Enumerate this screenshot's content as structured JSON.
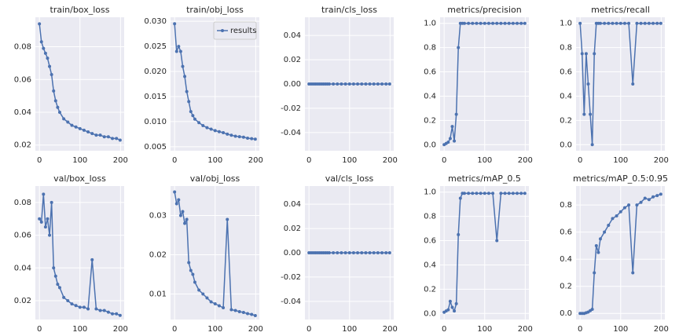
{
  "chart_data": [
    {
      "type": "line",
      "title": "train/box_loss",
      "x": [
        0,
        5,
        10,
        15,
        20,
        25,
        30,
        35,
        40,
        45,
        50,
        60,
        70,
        80,
        90,
        100,
        110,
        120,
        130,
        140,
        150,
        160,
        170,
        180,
        190,
        199
      ],
      "series": [
        {
          "color": "#4c72b0",
          "values": [
            0.094,
            0.083,
            0.079,
            0.076,
            0.073,
            0.068,
            0.063,
            0.053,
            0.047,
            0.043,
            0.04,
            0.036,
            0.034,
            0.032,
            0.031,
            0.03,
            0.029,
            0.028,
            0.027,
            0.026,
            0.026,
            0.025,
            0.025,
            0.024,
            0.024,
            0.023
          ]
        }
      ],
      "xlim": [
        -10,
        209
      ],
      "ylim": [
        0.0165,
        0.098
      ],
      "xticks": [
        0,
        100,
        200
      ],
      "yticks": [
        0.02,
        0.04,
        0.06,
        0.08
      ],
      "grid": true
    },
    {
      "type": "line",
      "title": "train/obj_loss",
      "x": [
        0,
        5,
        10,
        15,
        20,
        25,
        30,
        35,
        40,
        45,
        50,
        60,
        70,
        80,
        90,
        100,
        110,
        120,
        130,
        140,
        150,
        160,
        170,
        180,
        190,
        199
      ],
      "series": [
        {
          "name": "results",
          "color": "#4c72b0",
          "values": [
            0.0295,
            0.024,
            0.025,
            0.024,
            0.021,
            0.019,
            0.016,
            0.014,
            0.012,
            0.0112,
            0.0105,
            0.0098,
            0.0092,
            0.0088,
            0.0085,
            0.0082,
            0.008,
            0.0078,
            0.0075,
            0.0073,
            0.0071,
            0.007,
            0.0069,
            0.0067,
            0.0066,
            0.0065
          ]
        }
      ],
      "xlim": [
        -10,
        209
      ],
      "ylim": [
        0.0042,
        0.0308
      ],
      "xticks": [
        0,
        100,
        200
      ],
      "yticks": [
        0.005,
        {
          "value": 0.01,
          "label": "0.010"
        },
        0.015,
        {
          "value": 0.02,
          "label": "0.020"
        },
        0.025,
        {
          "value": 0.03,
          "label": "0.030"
        }
      ],
      "grid": true,
      "legend": "upper right"
    },
    {
      "type": "line",
      "title": "train/cls_loss",
      "x": [
        0,
        5,
        10,
        15,
        20,
        25,
        30,
        35,
        40,
        45,
        50,
        60,
        70,
        80,
        90,
        100,
        110,
        120,
        130,
        140,
        150,
        160,
        170,
        180,
        190,
        199
      ],
      "series": [
        {
          "color": "#4c72b0",
          "values": [
            0,
            0,
            0,
            0,
            0,
            0,
            0,
            0,
            0,
            0,
            0,
            0,
            0,
            0,
            0,
            0,
            0,
            0,
            0,
            0,
            0,
            0,
            0,
            0,
            0,
            0
          ]
        }
      ],
      "xlim": [
        -10,
        209
      ],
      "ylim": [
        -0.055,
        0.055
      ],
      "xticks": [
        0,
        100,
        200
      ],
      "yticks": [
        -0.04,
        -0.02,
        {
          "value": 0,
          "label": "0.00"
        },
        0.02,
        0.04
      ],
      "grid": true
    },
    {
      "type": "line",
      "title": "metrics/precision",
      "x": [
        0,
        5,
        10,
        15,
        20,
        25,
        30,
        35,
        40,
        45,
        50,
        60,
        70,
        80,
        90,
        100,
        110,
        120,
        130,
        140,
        150,
        160,
        170,
        180,
        190,
        199
      ],
      "series": [
        {
          "color": "#4c72b0",
          "values": [
            0.0,
            0.01,
            0.02,
            0.05,
            0.15,
            0.03,
            0.25,
            0.8,
            1,
            1,
            1,
            1,
            1,
            1,
            1,
            1,
            1,
            1,
            1,
            1,
            1,
            1,
            1,
            1,
            1,
            1
          ]
        }
      ],
      "xlim": [
        -10,
        209
      ],
      "ylim": [
        -0.05,
        1.05
      ],
      "xticks": [
        0,
        100,
        200
      ],
      "yticks": [
        {
          "value": 0,
          "label": "0.0"
        },
        0.2,
        0.4,
        0.6,
        0.8,
        {
          "value": 1,
          "label": "1.0"
        }
      ],
      "grid": true
    },
    {
      "type": "line",
      "title": "metrics/recall",
      "x": [
        0,
        5,
        10,
        15,
        20,
        25,
        30,
        35,
        40,
        45,
        50,
        60,
        70,
        80,
        90,
        100,
        110,
        120,
        130,
        140,
        150,
        160,
        170,
        180,
        190,
        199
      ],
      "series": [
        {
          "color": "#4c72b0",
          "values": [
            1,
            0.75,
            0.25,
            0.75,
            0.5,
            0.25,
            0.0,
            0.75,
            1,
            1,
            1,
            1,
            1,
            1,
            1,
            1,
            1,
            1,
            0.5,
            1,
            1,
            1,
            1,
            1,
            1,
            1
          ]
        }
      ],
      "xlim": [
        -10,
        209
      ],
      "ylim": [
        -0.05,
        1.05
      ],
      "xticks": [
        0,
        100,
        200
      ],
      "yticks": [
        {
          "value": 0,
          "label": "0.0"
        },
        0.2,
        0.4,
        0.6,
        0.8,
        {
          "value": 1,
          "label": "1.0"
        }
      ],
      "grid": true
    },
    {
      "type": "line",
      "title": "val/box_loss",
      "x": [
        0,
        5,
        10,
        15,
        20,
        25,
        30,
        35,
        40,
        45,
        50,
        60,
        70,
        80,
        90,
        100,
        110,
        120,
        130,
        140,
        150,
        160,
        170,
        180,
        190,
        199
      ],
      "series": [
        {
          "color": "#4c72b0",
          "values": [
            0.07,
            0.068,
            0.085,
            0.065,
            0.07,
            0.06,
            0.08,
            0.04,
            0.035,
            0.03,
            0.028,
            0.022,
            0.02,
            0.018,
            0.017,
            0.016,
            0.016,
            0.015,
            0.045,
            0.015,
            0.014,
            0.014,
            0.013,
            0.012,
            0.012,
            0.011
          ]
        }
      ],
      "xlim": [
        -10,
        209
      ],
      "ylim": [
        0.0085,
        0.09
      ],
      "xticks": [
        0,
        100,
        200
      ],
      "yticks": [
        0.02,
        0.04,
        0.06,
        0.08
      ],
      "grid": true
    },
    {
      "type": "line",
      "title": "val/obj_loss",
      "x": [
        0,
        5,
        10,
        15,
        20,
        25,
        30,
        35,
        40,
        45,
        50,
        60,
        70,
        80,
        90,
        100,
        110,
        120,
        130,
        140,
        150,
        160,
        170,
        180,
        190,
        199
      ],
      "series": [
        {
          "color": "#4c72b0",
          "values": [
            0.036,
            0.033,
            0.034,
            0.03,
            0.031,
            0.028,
            0.029,
            0.018,
            0.016,
            0.015,
            0.013,
            0.011,
            0.01,
            0.009,
            0.008,
            0.0075,
            0.007,
            0.0065,
            0.029,
            0.006,
            0.0058,
            0.0055,
            0.0053,
            0.005,
            0.0048,
            0.0045
          ]
        }
      ],
      "xlim": [
        -10,
        209
      ],
      "ylim": [
        0.0035,
        0.0375
      ],
      "xticks": [
        0,
        100,
        200
      ],
      "yticks": [
        0.01,
        0.02,
        0.03
      ],
      "grid": true
    },
    {
      "type": "line",
      "title": "val/cls_loss",
      "x": [
        0,
        5,
        10,
        15,
        20,
        25,
        30,
        35,
        40,
        45,
        50,
        60,
        70,
        80,
        90,
        100,
        110,
        120,
        130,
        140,
        150,
        160,
        170,
        180,
        190,
        199
      ],
      "series": [
        {
          "color": "#4c72b0",
          "values": [
            0,
            0,
            0,
            0,
            0,
            0,
            0,
            0,
            0,
            0,
            0,
            0,
            0,
            0,
            0,
            0,
            0,
            0,
            0,
            0,
            0,
            0,
            0,
            0,
            0,
            0
          ]
        }
      ],
      "xlim": [
        -10,
        209
      ],
      "ylim": [
        -0.055,
        0.055
      ],
      "xticks": [
        0,
        100,
        200
      ],
      "yticks": [
        -0.04,
        -0.02,
        {
          "value": 0,
          "label": "0.00"
        },
        0.02,
        0.04
      ],
      "grid": true
    },
    {
      "type": "line",
      "title": "metrics/mAP_0.5",
      "x": [
        0,
        5,
        10,
        15,
        20,
        25,
        30,
        35,
        40,
        45,
        50,
        60,
        70,
        80,
        90,
        100,
        110,
        120,
        130,
        140,
        150,
        160,
        170,
        180,
        190,
        199
      ],
      "series": [
        {
          "color": "#4c72b0",
          "values": [
            0.01,
            0.02,
            0.03,
            0.1,
            0.05,
            0.02,
            0.08,
            0.65,
            0.95,
            0.99,
            0.99,
            0.99,
            0.99,
            0.99,
            0.99,
            0.99,
            0.99,
            0.99,
            0.6,
            0.99,
            0.99,
            0.99,
            0.99,
            0.99,
            0.99,
            0.99
          ]
        }
      ],
      "xlim": [
        -10,
        209
      ],
      "ylim": [
        -0.05,
        1.05
      ],
      "xticks": [
        0,
        100,
        200
      ],
      "yticks": [
        {
          "value": 0,
          "label": "0.0"
        },
        0.2,
        0.4,
        0.6,
        0.8,
        {
          "value": 1,
          "label": "1.0"
        }
      ],
      "grid": true
    },
    {
      "type": "line",
      "title": "metrics/mAP_0.5:0.95",
      "x": [
        0,
        5,
        10,
        15,
        20,
        25,
        30,
        35,
        40,
        45,
        50,
        60,
        70,
        80,
        90,
        100,
        110,
        120,
        130,
        140,
        150,
        160,
        170,
        180,
        190,
        199
      ],
      "series": [
        {
          "color": "#4c72b0",
          "values": [
            0,
            0,
            0,
            0.005,
            0.01,
            0.02,
            0.03,
            0.3,
            0.5,
            0.45,
            0.55,
            0.6,
            0.65,
            0.7,
            0.72,
            0.75,
            0.78,
            0.8,
            0.3,
            0.8,
            0.82,
            0.85,
            0.84,
            0.86,
            0.87,
            0.88
          ]
        }
      ],
      "xlim": [
        -10,
        209
      ],
      "ylim": [
        -0.045,
        0.94
      ],
      "xticks": [
        0,
        100,
        200
      ],
      "yticks": [
        {
          "value": 0,
          "label": "0.0"
        },
        0.2,
        0.4,
        0.6,
        0.8
      ],
      "grid": true
    }
  ]
}
